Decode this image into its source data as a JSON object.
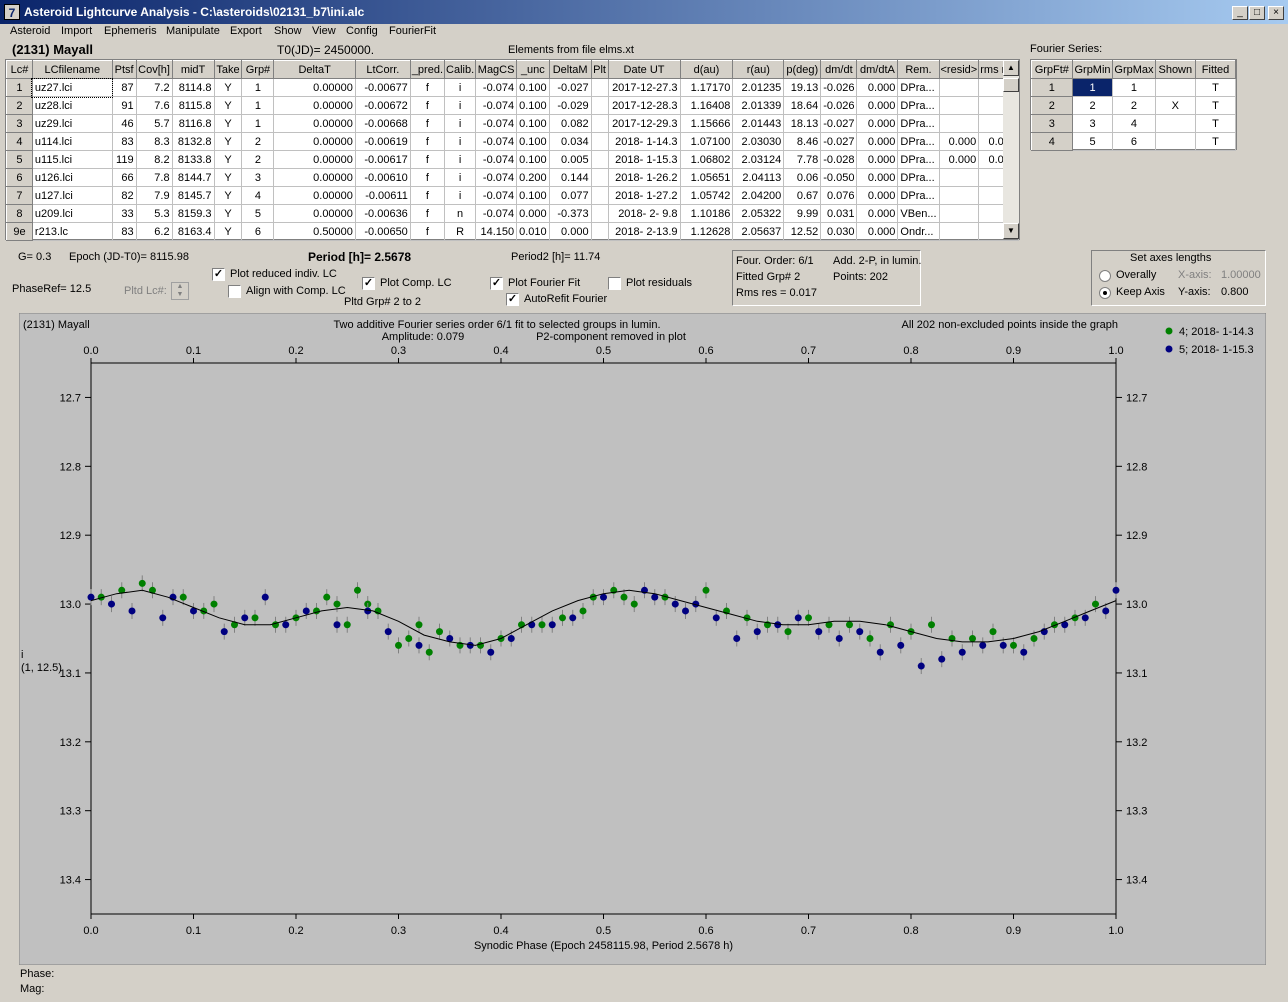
{
  "window": {
    "title": "Asteroid Lightcurve Analysis - C:\\asteroids\\02131_b7\\ini.alc",
    "icon_label": "7",
    "min": "_",
    "max": "□",
    "close": "×"
  },
  "menu": [
    "Asteroid",
    "Import",
    "Ephemeris",
    "Manipulate",
    "Export",
    "Show",
    "View",
    "Config",
    "FourierFit"
  ],
  "asteroid_name": "(2131) Mayall",
  "t0": "T0(JD)= 2450000.",
  "elements": "Elements from file elms.xt",
  "lc_table": {
    "headers": [
      "Lc#",
      "LCfilename",
      "Ptsf",
      "Cov[h]",
      "midT",
      "Take",
      "Grp#",
      "DeltaT",
      "LtCorr.",
      "_pred.",
      "Calib.",
      "MagCS",
      "_unc",
      "DeltaM",
      "Plt",
      "Date UT",
      "d(au)",
      "r(au)",
      "p(deg)",
      "dm/dt",
      "dm/dtA",
      "Rem.",
      "<resid>",
      "rms res"
    ],
    "rows": [
      [
        "1",
        "uz27.lci",
        "87",
        "7.2",
        "8114.8",
        "Y",
        "1",
        "0.00000",
        "-0.00677",
        "f",
        "i",
        "-0.074",
        "0.100",
        "-0.027",
        "",
        "2017-12-27.3",
        "1.17170",
        "2.01235",
        "19.13",
        "-0.026",
        "0.000",
        "DPra...",
        "",
        ""
      ],
      [
        "2",
        "uz28.lci",
        "91",
        "7.6",
        "8115.8",
        "Y",
        "1",
        "0.00000",
        "-0.00672",
        "f",
        "i",
        "-0.074",
        "0.100",
        "-0.029",
        "",
        "2017-12-28.3",
        "1.16408",
        "2.01339",
        "18.64",
        "-0.026",
        "0.000",
        "DPra...",
        "",
        ""
      ],
      [
        "3",
        "uz29.lci",
        "46",
        "5.7",
        "8116.8",
        "Y",
        "1",
        "0.00000",
        "-0.00668",
        "f",
        "i",
        "-0.074",
        "0.100",
        "0.082",
        "",
        "2017-12-29.3",
        "1.15666",
        "2.01443",
        "18.13",
        "-0.027",
        "0.000",
        "DPra...",
        "",
        ""
      ],
      [
        "4",
        "u114.lci",
        "83",
        "8.3",
        "8132.8",
        "Y",
        "2",
        "0.00000",
        "-0.00619",
        "f",
        "i",
        "-0.074",
        "0.100",
        "0.034",
        "",
        "2018- 1-14.3",
        "1.07100",
        "2.03030",
        "8.46",
        "-0.027",
        "0.000",
        "DPra...",
        "0.000",
        "0.017"
      ],
      [
        "5",
        "u115.lci",
        "119",
        "8.2",
        "8133.8",
        "Y",
        "2",
        "0.00000",
        "-0.00617",
        "f",
        "i",
        "-0.074",
        "0.100",
        "0.005",
        "",
        "2018- 1-15.3",
        "1.06802",
        "2.03124",
        "7.78",
        "-0.028",
        "0.000",
        "DPra...",
        "0.000",
        "0.016"
      ],
      [
        "6",
        "u126.lci",
        "66",
        "7.8",
        "8144.7",
        "Y",
        "3",
        "0.00000",
        "-0.00610",
        "f",
        "i",
        "-0.074",
        "0.200",
        "0.144",
        "",
        "2018- 1-26.2",
        "1.05651",
        "2.04113",
        "0.06",
        "-0.050",
        "0.000",
        "DPra...",
        "",
        ""
      ],
      [
        "7",
        "u127.lci",
        "82",
        "7.9",
        "8145.7",
        "Y",
        "4",
        "0.00000",
        "-0.00611",
        "f",
        "i",
        "-0.074",
        "0.100",
        "0.077",
        "",
        "2018- 1-27.2",
        "1.05742",
        "2.04200",
        "0.67",
        "0.076",
        "0.000",
        "DPra...",
        "",
        ""
      ],
      [
        "8",
        "u209.lci",
        "33",
        "5.3",
        "8159.3",
        "Y",
        "5",
        "0.00000",
        "-0.00636",
        "f",
        "n",
        "-0.074",
        "0.000",
        "-0.373",
        "",
        "2018- 2- 9.8",
        "1.10186",
        "2.05322",
        "9.99",
        "0.031",
        "0.000",
        "VBen...",
        "",
        ""
      ],
      [
        "9e",
        "r213.lc",
        "83",
        "6.2",
        "8163.4",
        "Y",
        "6",
        "0.50000",
        "-0.00650",
        "f",
        "R",
        "14.150",
        "0.010",
        "0.000",
        "",
        "2018- 2-13.9",
        "1.12628",
        "2.05637",
        "12.52",
        "0.030",
        "0.000",
        "Ondr...",
        "",
        ""
      ]
    ]
  },
  "fourier_series": {
    "label": "Fourier Series:",
    "headers": [
      "GrpFt#",
      "GrpMin",
      "GrpMax",
      "Shown",
      "Fitted"
    ],
    "rows": [
      [
        "1",
        "1",
        "1",
        "",
        "T"
      ],
      [
        "2",
        "2",
        "2",
        "X",
        "T"
      ],
      [
        "3",
        "3",
        "4",
        "",
        "T"
      ],
      [
        "4",
        "5",
        "6",
        "",
        "T"
      ]
    ]
  },
  "controls": {
    "g": "G= 0.3",
    "epoch": "Epoch (JD-T0)= 8115.98",
    "period": "Period [h]= 2.5678",
    "period2": "Period2 [h]= 11.74",
    "phaseref": "PhaseRef= 12.5",
    "pltd_lc": "Pltd Lc#:",
    "plot_reduced": "Plot reduced indiv. LC",
    "align_comp": "Align with Comp. LC",
    "plot_comp": "Plot Comp. LC",
    "pltd_grp": "Pltd Grp#  2   to   2",
    "plot_fourier": "Plot Fourier Fit",
    "autorefit": "AutoRefit Fourier",
    "plot_residuals": "Plot residuals",
    "plot_reduced_checked": true,
    "align_comp_checked": false,
    "plot_comp_checked": true,
    "plot_fourier_checked": true,
    "autorefit_checked": true,
    "plot_residuals_checked": false
  },
  "fourier_info": {
    "order": "Four. Order:  6/1",
    "add": "Add. 2-P, in lumin.",
    "fitted": "Fitted Grp# 2",
    "points": "Points: 202",
    "rms": "Rms res      = 0.017"
  },
  "axes_box": {
    "title": "Set axes lengths",
    "overally": "Overally",
    "keep_axis": "Keep Axis",
    "xaxis_label": "X-axis:",
    "xaxis_value": "1.00000",
    "yaxis_label": "Y-axis:",
    "yaxis_value": "0.800",
    "selected": "Keep Axis"
  },
  "status": {
    "phase": "Phase:",
    "mag": "Mag:"
  },
  "colors": {
    "series1": "#008000",
    "series2": "#000080",
    "plot_bg": "#c0c0c0",
    "titlebar": "#0a246a"
  },
  "chart_data": {
    "type": "scatter",
    "title_left": "(2131) Mayall",
    "title_center": "Two additive Fourier series order 6/1 fit to selected groups in lumin.",
    "amplitude": "Amplitude: 0.079",
    "p2_note": "P2-component removed in plot",
    "right_note": "All 202 non-excluded points inside the graph",
    "xlabel": "Synodic Phase (Epoch 2458115.98, Period 2.5678 h)",
    "ylabel": "i",
    "ylabel2": "(1, 12.5)",
    "xlim": [
      0.0,
      1.0
    ],
    "ylim": [
      12.65,
      13.45
    ],
    "y_inverted": true,
    "xticks": [
      "0.0",
      "0.1",
      "0.2",
      "0.3",
      "0.4",
      "0.5",
      "0.6",
      "0.7",
      "0.8",
      "0.9",
      "1.0"
    ],
    "yticks": [
      "12.7",
      "12.8",
      "12.9",
      "13.0",
      "13.1",
      "13.2",
      "13.3",
      "13.4"
    ],
    "series": [
      {
        "name": "4; 2018- 1-14.3",
        "color": "#008000",
        "x": [
          0.01,
          0.03,
          0.05,
          0.06,
          0.09,
          0.11,
          0.12,
          0.14,
          0.16,
          0.18,
          0.2,
          0.22,
          0.23,
          0.24,
          0.25,
          0.26,
          0.27,
          0.28,
          0.3,
          0.31,
          0.32,
          0.33,
          0.34,
          0.36,
          0.38,
          0.4,
          0.42,
          0.44,
          0.46,
          0.48,
          0.49,
          0.51,
          0.52,
          0.53,
          0.56,
          0.6,
          0.62,
          0.64,
          0.66,
          0.68,
          0.7,
          0.72,
          0.74,
          0.76,
          0.78,
          0.8,
          0.82,
          0.84,
          0.86,
          0.88,
          0.9,
          0.92,
          0.94,
          0.96,
          0.98
        ],
        "y": [
          12.99,
          12.98,
          12.97,
          12.98,
          12.99,
          13.01,
          13.0,
          13.03,
          13.02,
          13.03,
          13.02,
          13.01,
          12.99,
          13.0,
          13.03,
          12.98,
          13.0,
          13.01,
          13.06,
          13.05,
          13.03,
          13.07,
          13.04,
          13.06,
          13.06,
          13.05,
          13.03,
          13.03,
          13.02,
          13.01,
          12.99,
          12.98,
          12.99,
          13.0,
          12.99,
          12.98,
          13.01,
          13.02,
          13.03,
          13.04,
          13.02,
          13.03,
          13.03,
          13.05,
          13.03,
          13.04,
          13.03,
          13.05,
          13.05,
          13.04,
          13.06,
          13.05,
          13.03,
          13.02,
          13.0
        ]
      },
      {
        "name": "5; 2018- 1-15.3",
        "color": "#000080",
        "x": [
          0.0,
          0.02,
          0.04,
          0.07,
          0.08,
          0.1,
          0.13,
          0.15,
          0.17,
          0.19,
          0.21,
          0.24,
          0.27,
          0.29,
          0.32,
          0.35,
          0.37,
          0.39,
          0.41,
          0.43,
          0.45,
          0.47,
          0.5,
          0.54,
          0.55,
          0.57,
          0.58,
          0.59,
          0.61,
          0.63,
          0.65,
          0.67,
          0.69,
          0.71,
          0.73,
          0.75,
          0.77,
          0.79,
          0.81,
          0.83,
          0.85,
          0.87,
          0.89,
          0.91,
          0.93,
          0.95,
          0.97,
          0.99,
          1.0
        ],
        "y": [
          12.99,
          13.0,
          13.01,
          13.02,
          12.99,
          13.01,
          13.04,
          13.02,
          12.99,
          13.03,
          13.01,
          13.03,
          13.01,
          13.04,
          13.06,
          13.05,
          13.06,
          13.07,
          13.05,
          13.03,
          13.03,
          13.02,
          12.99,
          12.98,
          12.99,
          13.0,
          13.01,
          13.0,
          13.02,
          13.05,
          13.04,
          13.03,
          13.02,
          13.04,
          13.05,
          13.04,
          13.07,
          13.06,
          13.09,
          13.08,
          13.07,
          13.06,
          13.06,
          13.07,
          13.04,
          13.03,
          13.02,
          13.01,
          12.98
        ]
      },
      {
        "name": "Fourier fit",
        "color": "#000000",
        "x": [
          0.0,
          0.025,
          0.05,
          0.075,
          0.1,
          0.125,
          0.15,
          0.175,
          0.2,
          0.225,
          0.25,
          0.275,
          0.3,
          0.325,
          0.35,
          0.375,
          0.4,
          0.425,
          0.45,
          0.475,
          0.5,
          0.525,
          0.55,
          0.575,
          0.6,
          0.625,
          0.65,
          0.675,
          0.7,
          0.725,
          0.75,
          0.775,
          0.8,
          0.825,
          0.85,
          0.875,
          0.9,
          0.925,
          0.95,
          0.975,
          1.0
        ],
        "y": [
          12.995,
          12.985,
          12.98,
          12.99,
          13.005,
          13.02,
          13.03,
          13.03,
          13.02,
          13.01,
          13.005,
          13.01,
          13.025,
          13.045,
          13.055,
          13.06,
          13.05,
          13.03,
          13.01,
          12.995,
          12.985,
          12.98,
          12.985,
          12.995,
          13.005,
          13.015,
          13.025,
          13.03,
          13.03,
          13.025,
          13.025,
          13.03,
          13.04,
          13.05,
          13.055,
          13.055,
          13.05,
          13.04,
          13.025,
          13.01,
          12.995
        ]
      }
    ],
    "legend_position": "top-right"
  }
}
